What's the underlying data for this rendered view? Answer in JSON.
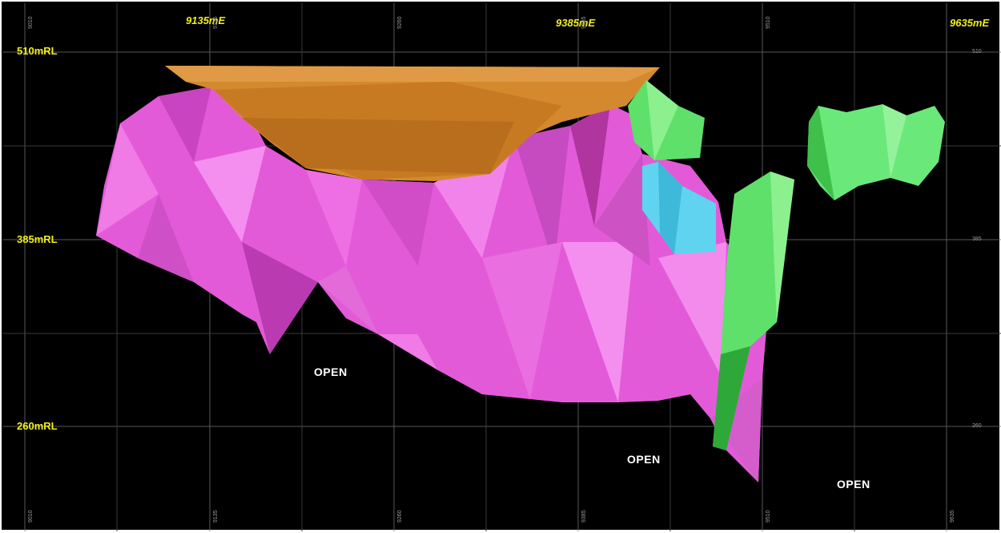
{
  "easting_labels": [
    "9135mE",
    "9385mE",
    "9635mE"
  ],
  "rl_labels": [
    "510mRL",
    "385mRL",
    "260mRL"
  ],
  "right_ticks": [
    "510",
    "385",
    "260"
  ],
  "top_ticks": [
    "9010",
    "9135",
    "9260",
    "9385",
    "9510"
  ],
  "bottom_ticks": [
    "9010",
    "9135",
    "9260",
    "9385",
    "9510",
    "9635"
  ],
  "open_labels": [
    "OPEN",
    "OPEN",
    "OPEN"
  ],
  "colors": {
    "background": "#000000",
    "grid": "#6e6e6e",
    "label_yellow": "#f2ee1c",
    "pink_orebody": "#e35ad8",
    "orange_pit": "#d4892e",
    "green_lodes": "#5fe06a",
    "blue_lode": "#5fd3ef"
  }
}
